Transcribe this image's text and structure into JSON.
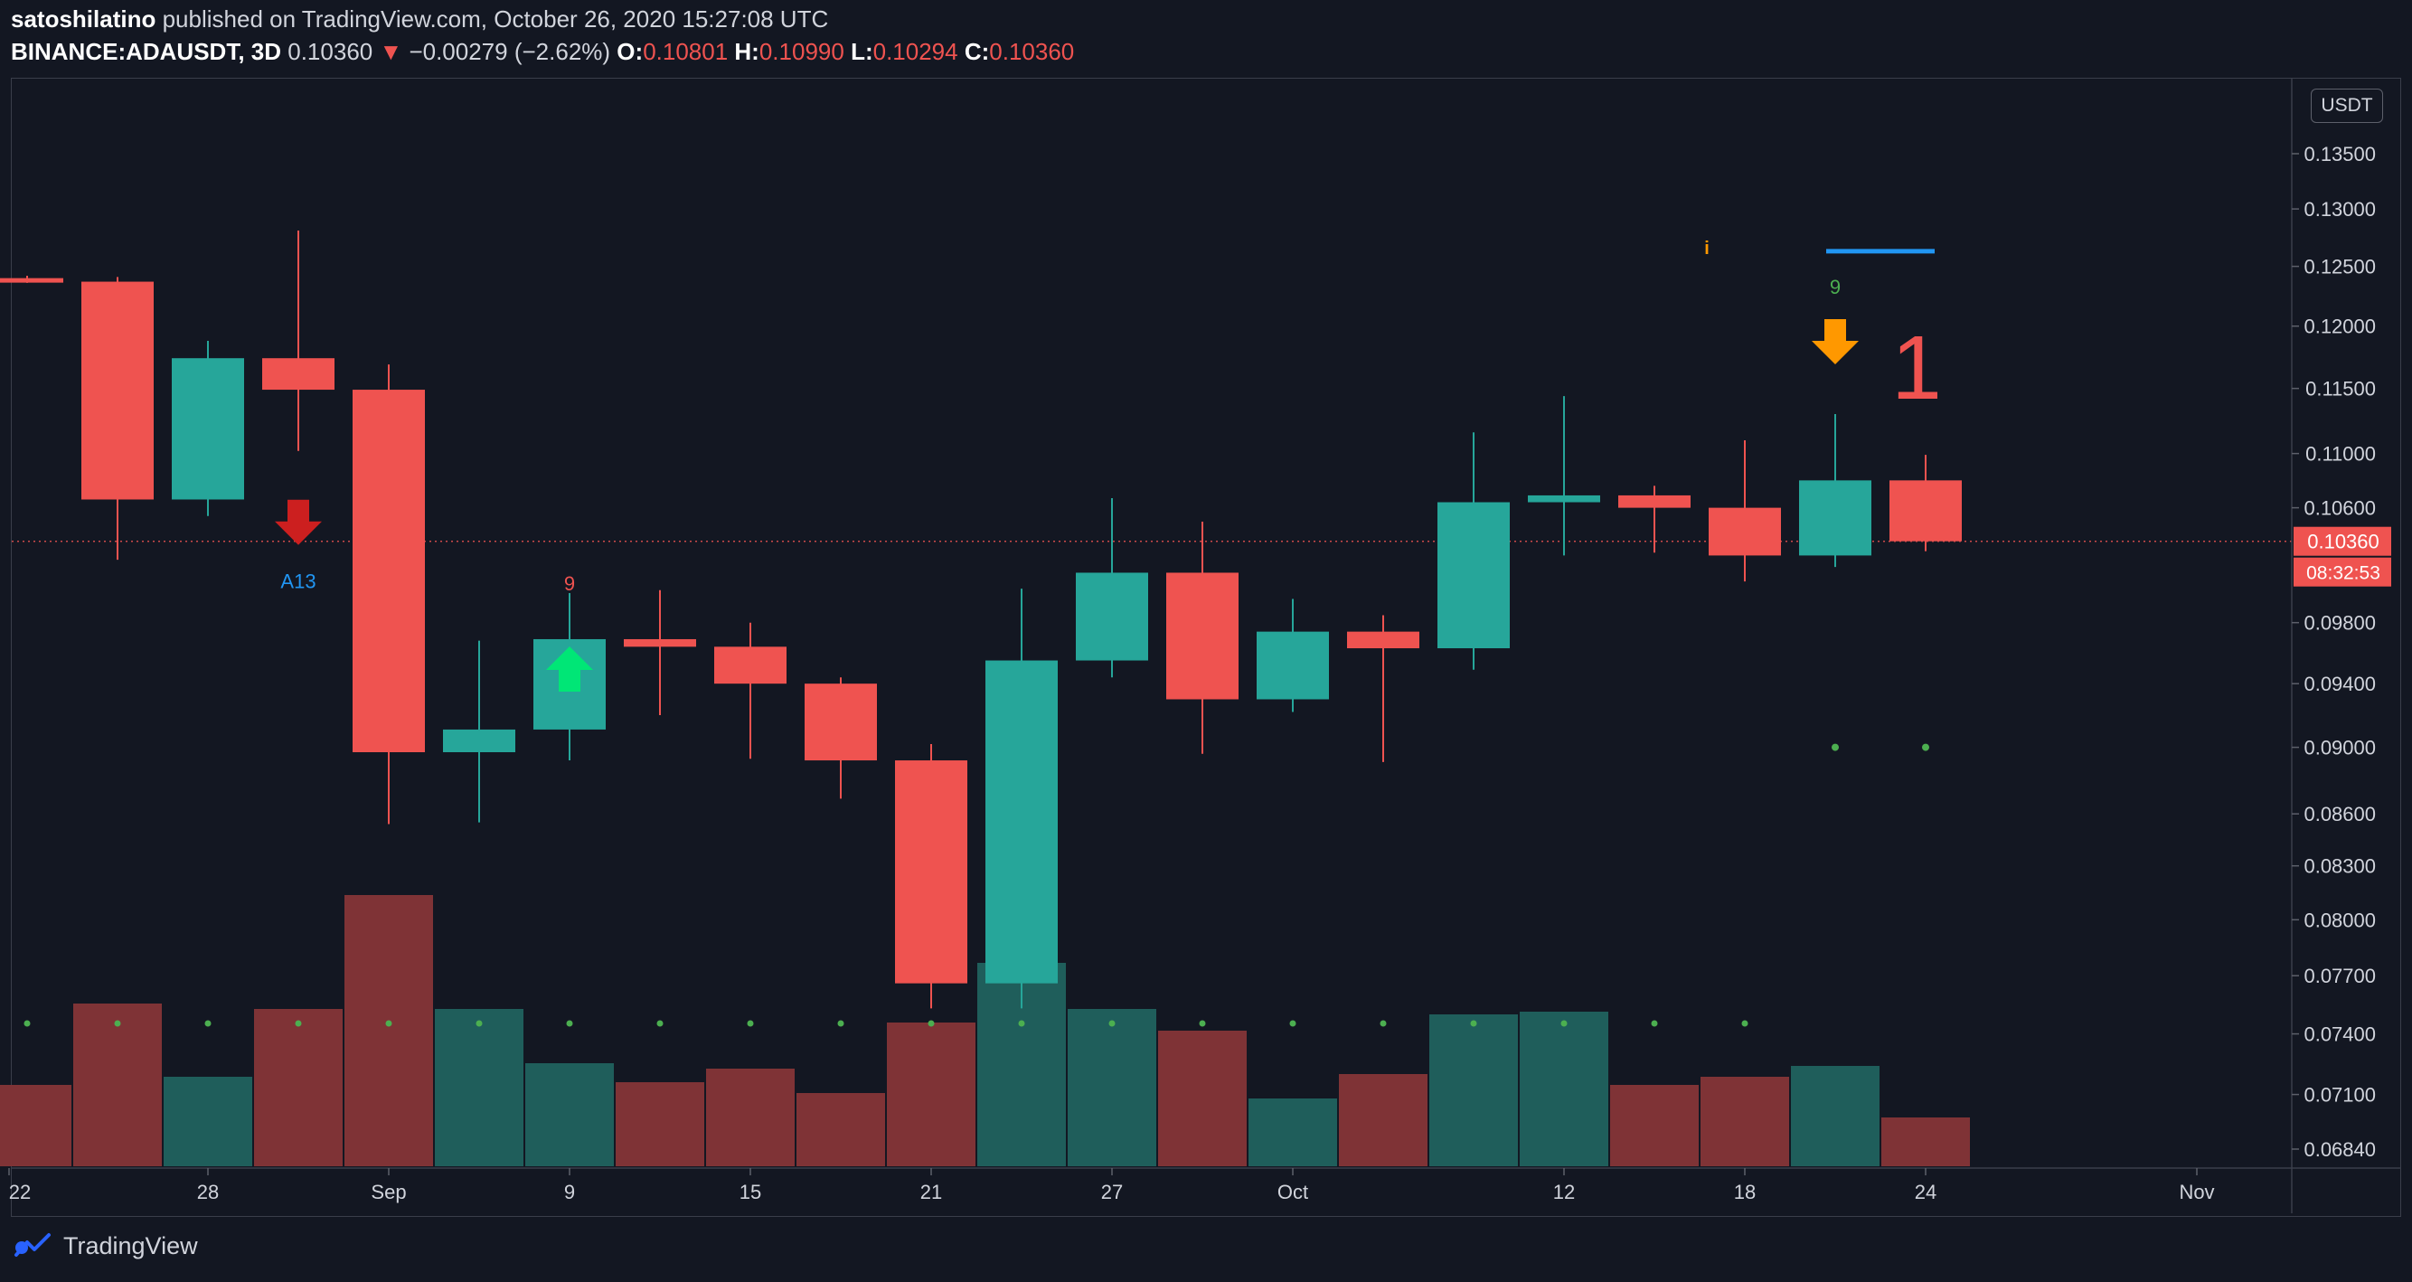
{
  "header": {
    "author": "satoshilatino",
    "published": "published on TradingView.com, October 26, 2020 15:27:08 UTC",
    "symbol": "BINANCE:ADAUSDT, 3D",
    "last": "0.10360",
    "change": "−0.00279 (−2.62%)",
    "o_label": "O:",
    "o": "0.10801",
    "h_label": "H:",
    "h": "0.10990",
    "l_label": "L:",
    "l": "0.10294",
    "c_label": "C:",
    "c": "0.10360"
  },
  "currency_button": "USDT",
  "footer": {
    "brand": "TradingView"
  },
  "colors": {
    "up": "#26a69a",
    "down": "#ef5350",
    "vol_up": "#1f5e5b",
    "vol_down": "#7f3336",
    "background": "#131722",
    "signal_green": "#00e676",
    "signal_red": "#cc1f1f",
    "signal_orange": "#ff9800",
    "label_blue": "#2196f3",
    "dot_green": "#4caf50"
  },
  "chart_data": {
    "type": "candlestick",
    "symbol": "BINANCE:ADAUSDT",
    "timeframe": "3D",
    "price_ticks": [
      "0.13500",
      "0.13000",
      "0.12500",
      "0.12000",
      "0.11500",
      "0.11000",
      "0.10600",
      "0.09800",
      "0.09400",
      "0.09000",
      "0.08600",
      "0.08300",
      "0.08000",
      "0.07700",
      "0.07400",
      "0.07100",
      "0.06840"
    ],
    "x_ticks": [
      "22",
      "28",
      "Sep",
      "9",
      "15",
      "21",
      "27",
      "Oct",
      "12",
      "18",
      "24",
      "Nov"
    ],
    "current_price": "0.10360",
    "countdown": "08:32:53",
    "candles": [
      {
        "date": "Aug 22",
        "open": 0.124,
        "high": 0.1242,
        "low": 0.1236,
        "close": 0.1238
      },
      {
        "date": "Aug 25",
        "open": 0.1237,
        "high": 0.1241,
        "low": 0.1023,
        "close": 0.1066
      },
      {
        "date": "Aug 28",
        "open": 0.1066,
        "high": 0.1188,
        "low": 0.1054,
        "close": 0.1174
      },
      {
        "date": "Aug 31",
        "open": 0.1174,
        "high": 0.1281,
        "low": 0.1102,
        "close": 0.1149
      },
      {
        "date": "Sep 3",
        "open": 0.1149,
        "high": 0.1169,
        "low": 0.0854,
        "close": 0.0897
      },
      {
        "date": "Sep 6",
        "open": 0.0897,
        "high": 0.0968,
        "low": 0.0855,
        "close": 0.0911
      },
      {
        "date": "Sep 9",
        "open": 0.0911,
        "high": 0.1,
        "low": 0.0892,
        "close": 0.0969
      },
      {
        "date": "Sep 12",
        "open": 0.0969,
        "high": 0.1002,
        "low": 0.092,
        "close": 0.0964
      },
      {
        "date": "Sep 15",
        "open": 0.0964,
        "high": 0.098,
        "low": 0.0893,
        "close": 0.094
      },
      {
        "date": "Sep 18",
        "open": 0.094,
        "high": 0.0944,
        "low": 0.0869,
        "close": 0.0892
      },
      {
        "date": "Sep 21",
        "open": 0.0892,
        "high": 0.0902,
        "low": 0.0753,
        "close": 0.0766
      },
      {
        "date": "Sep 24",
        "open": 0.0766,
        "high": 0.1003,
        "low": 0.0753,
        "close": 0.0955
      },
      {
        "date": "Sep 27",
        "open": 0.0955,
        "high": 0.1067,
        "low": 0.0944,
        "close": 0.1014
      },
      {
        "date": "Sep 30",
        "open": 0.1014,
        "high": 0.105,
        "low": 0.0896,
        "close": 0.093
      },
      {
        "date": "Oct 3",
        "open": 0.093,
        "high": 0.0996,
        "low": 0.0922,
        "close": 0.0974
      },
      {
        "date": "Oct 6",
        "open": 0.0974,
        "high": 0.0985,
        "low": 0.0891,
        "close": 0.0963
      },
      {
        "date": "Oct 9",
        "open": 0.0963,
        "high": 0.1116,
        "low": 0.0949,
        "close": 0.1064
      },
      {
        "date": "Oct 12",
        "open": 0.1064,
        "high": 0.1144,
        "low": 0.1026,
        "close": 0.1069
      },
      {
        "date": "Oct 15",
        "open": 0.1069,
        "high": 0.1076,
        "low": 0.1028,
        "close": 0.106
      },
      {
        "date": "Oct 18",
        "open": 0.106,
        "high": 0.111,
        "low": 0.1008,
        "close": 0.1026
      },
      {
        "date": "Oct 21",
        "open": 0.1026,
        "high": 0.113,
        "low": 0.1018,
        "close": 0.108
      },
      {
        "date": "Oct 24",
        "open": 0.108,
        "high": 0.1099,
        "low": 0.1029,
        "close": 0.1036
      }
    ],
    "volume_relative": [
      0.3,
      0.6,
      0.33,
      0.58,
      1.0,
      0.58,
      0.38,
      0.31,
      0.36,
      0.27,
      0.53,
      0.75,
      0.58,
      0.5,
      0.25,
      0.34,
      0.56,
      0.57,
      0.3,
      0.33,
      0.37,
      0.18
    ],
    "annotations": [
      {
        "candle": 3,
        "kind": "arrow-down",
        "color": "#cc1f1f",
        "text": "A13",
        "text_color": "#2196f3"
      },
      {
        "candle": 6,
        "kind": "arrow-up",
        "color": "#00e676",
        "text": "9",
        "text_color": "#ef5350"
      },
      {
        "candle": 20,
        "kind": "arrow-down",
        "color": "#ff9800",
        "text": "9",
        "text_color": "#4caf50"
      },
      {
        "candle": 21,
        "kind": "label",
        "text": "1",
        "text_color": "#ef5350"
      },
      {
        "candle": 19,
        "kind": "label",
        "text": "i",
        "text_color": "#ff9800"
      }
    ],
    "resistance_line": {
      "from_candle": 20,
      "to_candle": 21,
      "price": 0.1263,
      "color": "#2196f3"
    },
    "green_dots_price": 0.09,
    "green_dots_candles": [
      20,
      21
    ]
  }
}
